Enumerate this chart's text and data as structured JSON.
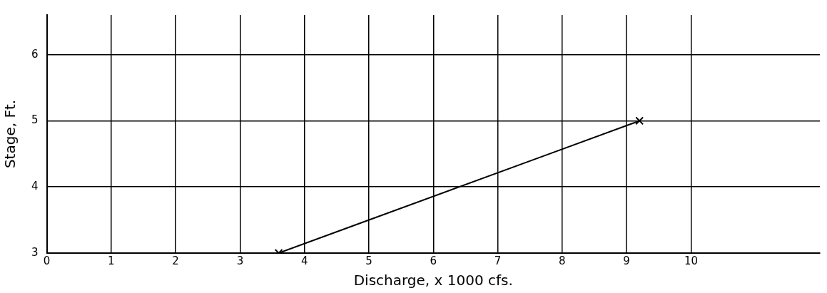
{
  "chart_data": {
    "type": "line",
    "xlabel": "Discharge, x 1000 cfs.",
    "ylabel": "Stage, Ft.",
    "series": [
      {
        "color": "#000000",
        "x": [
          3.6,
          9.2
        ],
        "values": [
          3,
          5
        ]
      }
    ],
    "xlim": [
      0,
      12
    ],
    "xticks": [
      0,
      1,
      2,
      3,
      4,
      5,
      6,
      7,
      8,
      9,
      10
    ],
    "ylim": [
      3,
      6.6
    ],
    "yticks": [
      3,
      4,
      5,
      6
    ],
    "grid": true,
    "marker": "cross",
    "line_style": "solid",
    "legend": false
  }
}
